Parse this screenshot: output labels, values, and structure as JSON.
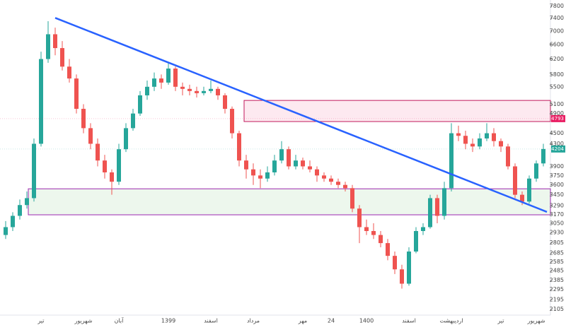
{
  "chart_data": {
    "type": "candlestick",
    "log_scale": true,
    "grid": false,
    "up_color": "#26a69a",
    "down_color": "#ef5350",
    "ylim": [
      2058,
      8000
    ],
    "yticks": [
      7800,
      7400,
      7000,
      6600,
      6200,
      5800,
      5500,
      5100,
      4900,
      4500,
      4300,
      3900,
      3750,
      3600,
      3450,
      3290,
      3170,
      3050,
      2930,
      2805,
      2685,
      2585,
      2485,
      2385,
      2295,
      2195,
      2105
    ],
    "categories": [
      null,
      null,
      null,
      null,
      null,
      "تیر",
      null,
      null,
      null,
      null,
      null,
      "شهریور",
      null,
      null,
      null,
      null,
      "آبان",
      null,
      null,
      null,
      null,
      null,
      null,
      "1399",
      null,
      null,
      null,
      null,
      null,
      "اسفند",
      null,
      null,
      null,
      null,
      null,
      "مرداد",
      null,
      null,
      null,
      null,
      null,
      null,
      "مهر",
      null,
      null,
      null,
      "24",
      null,
      null,
      null,
      null,
      "1400",
      null,
      null,
      null,
      null,
      null,
      "اسفند",
      null,
      null,
      null,
      null,
      null,
      "اردیبهشت",
      null,
      null,
      null,
      null,
      null,
      null,
      "تیر",
      null,
      null,
      null,
      null,
      "شهریور",
      null
    ],
    "open": [
      2900,
      3000,
      3150,
      3300,
      3400,
      4300,
      6200,
      6900,
      6500,
      6000,
      5700,
      5000,
      4600,
      4300,
      4000,
      3800,
      3650,
      4200,
      4600,
      4900,
      5300,
      5500,
      5700,
      5600,
      5950,
      5500,
      5450,
      5400,
      5350,
      5400,
      5450,
      5300,
      5000,
      4500,
      4000,
      3850,
      3750,
      3700,
      3800,
      4000,
      4200,
      3900,
      4000,
      3900,
      3850,
      3750,
      3700,
      3650,
      3600,
      3550,
      3250,
      3000,
      2950,
      2900,
      2800,
      2650,
      2500,
      2350,
      2700,
      2950,
      3000,
      3400,
      3150,
      3550,
      4500,
      4450,
      4300,
      4250,
      4400,
      4500,
      4350,
      4250,
      3900,
      3450,
      3350,
      3700,
      3950
    ],
    "high": [
      3080,
      3200,
      3380,
      3500,
      4400,
      6400,
      7300,
      7100,
      6700,
      6200,
      5800,
      5100,
      4700,
      4400,
      4100,
      3850,
      4300,
      4700,
      5000,
      5400,
      5650,
      5850,
      5800,
      6100,
      6000,
      5600,
      5550,
      5500,
      5500,
      5650,
      5500,
      5350,
      5050,
      4550,
      4100,
      3950,
      3850,
      3900,
      4100,
      4350,
      4250,
      4100,
      4050,
      4000,
      3900,
      3800,
      3750,
      3700,
      3650,
      3600,
      3300,
      3100,
      3050,
      2950,
      2850,
      2700,
      2550,
      2750,
      3000,
      3050,
      3450,
      3450,
      3650,
      4700,
      4650,
      4550,
      4400,
      4500,
      4700,
      4600,
      4400,
      4300,
      3950,
      3500,
      3750,
      4000,
      4300
    ],
    "low": [
      2850,
      2950,
      3100,
      3250,
      3350,
      4250,
      6100,
      6300,
      5900,
      5600,
      4900,
      4500,
      4200,
      3900,
      3700,
      3450,
      3600,
      4150,
      4550,
      4850,
      5200,
      5400,
      5450,
      5550,
      5400,
      5300,
      5300,
      5250,
      5300,
      5350,
      5200,
      4900,
      4400,
      3900,
      3700,
      3600,
      3550,
      3650,
      3750,
      3950,
      3850,
      3850,
      3850,
      3800,
      3650,
      3650,
      3600,
      3550,
      3500,
      3200,
      2800,
      2900,
      2850,
      2750,
      2600,
      2450,
      2300,
      2330,
      2680,
      2900,
      2980,
      3050,
      3100,
      3500,
      4350,
      4200,
      4150,
      4200,
      4350,
      4250,
      4150,
      3850,
      3400,
      3300,
      3320,
      3650,
      3900
    ],
    "close": [
      3000,
      3150,
      3300,
      3400,
      4300,
      6200,
      6900,
      6500,
      6000,
      5700,
      5000,
      4600,
      4300,
      4000,
      3800,
      3650,
      4200,
      4600,
      4900,
      5300,
      5500,
      5700,
      5600,
      5950,
      5500,
      5450,
      5400,
      5350,
      5400,
      5450,
      5300,
      5000,
      4500,
      4000,
      3850,
      3750,
      3700,
      3800,
      4000,
      4200,
      3900,
      4000,
      3900,
      3850,
      3750,
      3700,
      3650,
      3600,
      3550,
      3250,
      3000,
      2950,
      2900,
      2800,
      2650,
      2500,
      2350,
      2700,
      2950,
      3000,
      3400,
      3150,
      3550,
      4500,
      4450,
      4300,
      4250,
      4400,
      4500,
      4350,
      4250,
      3900,
      3450,
      3350,
      3700,
      3950,
      4204
    ],
    "trendline": {
      "color": "#2962ff",
      "x": [
        7,
        76.5
      ],
      "y": [
        7406,
        3204
      ]
    },
    "zones": [
      {
        "x_start": 33.7,
        "low": 4733,
        "high": 5185,
        "fill": "#fce4ec",
        "stroke": "#c2185b"
      },
      {
        "x_start": 3.2,
        "low": 3164,
        "high": 3540,
        "fill": "#e8f5e9",
        "stroke": "#9c27b0"
      }
    ],
    "price_labels": [
      {
        "value": 4793,
        "color": "#e91e63"
      },
      {
        "value": 4204,
        "color": "#26a69a"
      }
    ]
  }
}
